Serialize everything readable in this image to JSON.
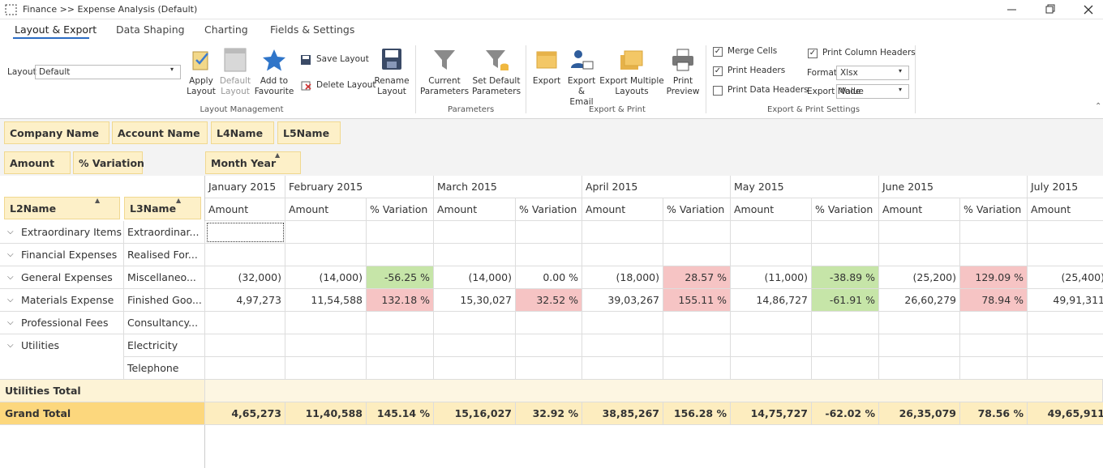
{
  "window": {
    "title": "Finance >> Expense Analysis (Default)"
  },
  "tabs": [
    "Layout & Export",
    "Data Shaping",
    "Charting",
    "Fields & Settings"
  ],
  "ribbon": {
    "layout_label": "Layout",
    "layout_value": "Default",
    "buttons": [
      "Apply Layout",
      "Default Layout",
      "Add to Favourite",
      "Rename Layout",
      "Current Parameters",
      "Set Default Parameters",
      "Export",
      "Export & Email",
      "Export Multiple Layouts",
      "Print Preview"
    ],
    "small_buttons": [
      "Save Layout",
      "Delete Layout"
    ],
    "checks": [
      {
        "label": "Merge Cells",
        "checked": true
      },
      {
        "label": "Print Headers",
        "checked": true
      },
      {
        "label": "Print Data Headers",
        "checked": false
      },
      {
        "label": "Print Column Headers",
        "checked": true
      }
    ],
    "format_label": "Format",
    "format_value": "Xlsx",
    "mode_label": "Export Mode",
    "mode_value": "Value",
    "groups": [
      "Layout Management",
      "Parameters",
      "Export & Print",
      "Export & Print Settings"
    ]
  },
  "pivot": {
    "filter_fields": [
      "Company Name",
      "Account Name",
      "L4Name",
      "L5Name"
    ],
    "data_fields": [
      "Amount",
      "% Variation"
    ],
    "column_field": "Month Year",
    "row_fields": [
      "L2Name",
      "L3Name"
    ],
    "months": [
      "January 2015",
      "February 2015",
      "March 2015",
      "April 2015",
      "May 2015",
      "June 2015",
      "July 2015"
    ],
    "column_headers": [
      "Amount",
      "Amount",
      "% Variation",
      "Amount",
      "% Variation",
      "Amount",
      "% Variation",
      "Amount",
      "% Variation",
      "Amount",
      "% Variation",
      "Amount"
    ],
    "rows": [
      {
        "l2": "Extraordinary Items",
        "l3": "Extraordinar..."
      },
      {
        "l2": "Financial Expenses",
        "l3": "Realised For..."
      },
      {
        "l2": "General Expenses",
        "l3": "Miscellaneo...",
        "values": [
          "(32,000)",
          "(14,000)",
          "-56.25 %",
          "(14,000)",
          "0.00 %",
          "(18,000)",
          "28.57 %",
          "(11,000)",
          "-38.89 %",
          "(25,200)",
          "129.09 %",
          "(25,400)"
        ]
      },
      {
        "l2": "Materials Expense",
        "l3": "Finished Goo...",
        "values": [
          "4,97,273",
          "11,54,588",
          "132.18 %",
          "15,30,027",
          "32.52 %",
          "39,03,267",
          "155.11 %",
          "14,86,727",
          "-61.91 %",
          "26,60,279",
          "78.94 %",
          "49,91,311"
        ]
      },
      {
        "l2": "Professional Fees",
        "l3": "Consultancy..."
      },
      {
        "l2": "Utilities",
        "l3": "Electricity"
      },
      {
        "l3": "Telephone"
      }
    ],
    "subtotal": {
      "label": "Utilities Total"
    },
    "grand_total": {
      "label": "Grand Total",
      "values": [
        "4,65,273",
        "11,40,588",
        "145.14 %",
        "15,16,027",
        "32.92 %",
        "38,85,267",
        "156.28 %",
        "14,75,727",
        "-62.02 %",
        "26,35,079",
        "78.56 %",
        "49,65,911"
      ]
    }
  }
}
